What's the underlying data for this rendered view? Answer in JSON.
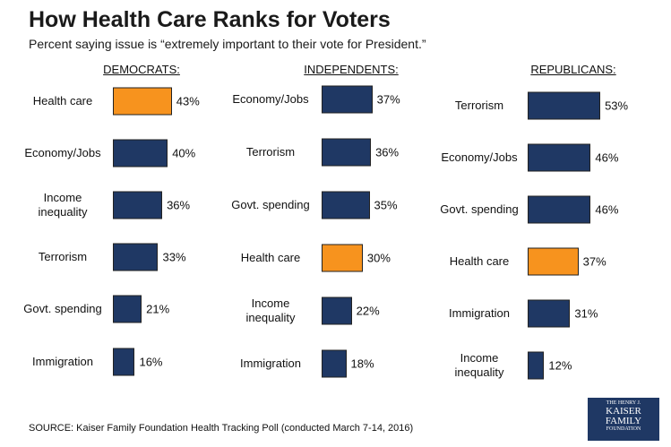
{
  "header": {
    "title": "How Health Care Ranks for Voters",
    "subtitle": "Percent saying issue is “extremely important to their vote for President.”"
  },
  "chart_data": [
    {
      "type": "bar",
      "title": "DEMOCRATS:",
      "categories": [
        "Health care",
        "Economy/Jobs",
        "Income inequality",
        "Terrorism",
        "Govt. spending",
        "Immigration"
      ],
      "values": [
        43,
        40,
        36,
        33,
        21,
        16
      ],
      "value_labels": [
        "43%",
        "40%",
        "36%",
        "33%",
        "21%",
        "16%"
      ],
      "colors": [
        "#f7931e",
        "#1f3864",
        "#1f3864",
        "#1f3864",
        "#1f3864",
        "#1f3864"
      ]
    },
    {
      "type": "bar",
      "title": "INDEPENDENTS:",
      "categories": [
        "Economy/Jobs",
        "Terrorism",
        "Govt. spending",
        "Health care",
        "Income inequality",
        "Immigration"
      ],
      "values": [
        37,
        36,
        35,
        30,
        22,
        18
      ],
      "value_labels": [
        "37%",
        "36%",
        "35%",
        "30%",
        "22%",
        "18%"
      ],
      "colors": [
        "#1f3864",
        "#1f3864",
        "#1f3864",
        "#f7931e",
        "#1f3864",
        "#1f3864"
      ]
    },
    {
      "type": "bar",
      "title": "REPUBLICANS:",
      "categories": [
        "Terrorism",
        "Economy/Jobs",
        "Govt. spending",
        "Health care",
        "Immigration",
        "Income inequality"
      ],
      "values": [
        53,
        46,
        46,
        37,
        31,
        12
      ],
      "value_labels": [
        "53%",
        "46%",
        "46%",
        "37%",
        "31%",
        "12%"
      ],
      "colors": [
        "#1f3864",
        "#1f3864",
        "#1f3864",
        "#f7931e",
        "#1f3864",
        "#1f3864"
      ]
    }
  ],
  "source": "SOURCE: Kaiser Family Foundation Health Tracking Poll (conducted March 7-14, 2016)",
  "logo": [
    "THE HENRY J.",
    "KAISER",
    "FAMILY",
    "FOUNDATION"
  ]
}
